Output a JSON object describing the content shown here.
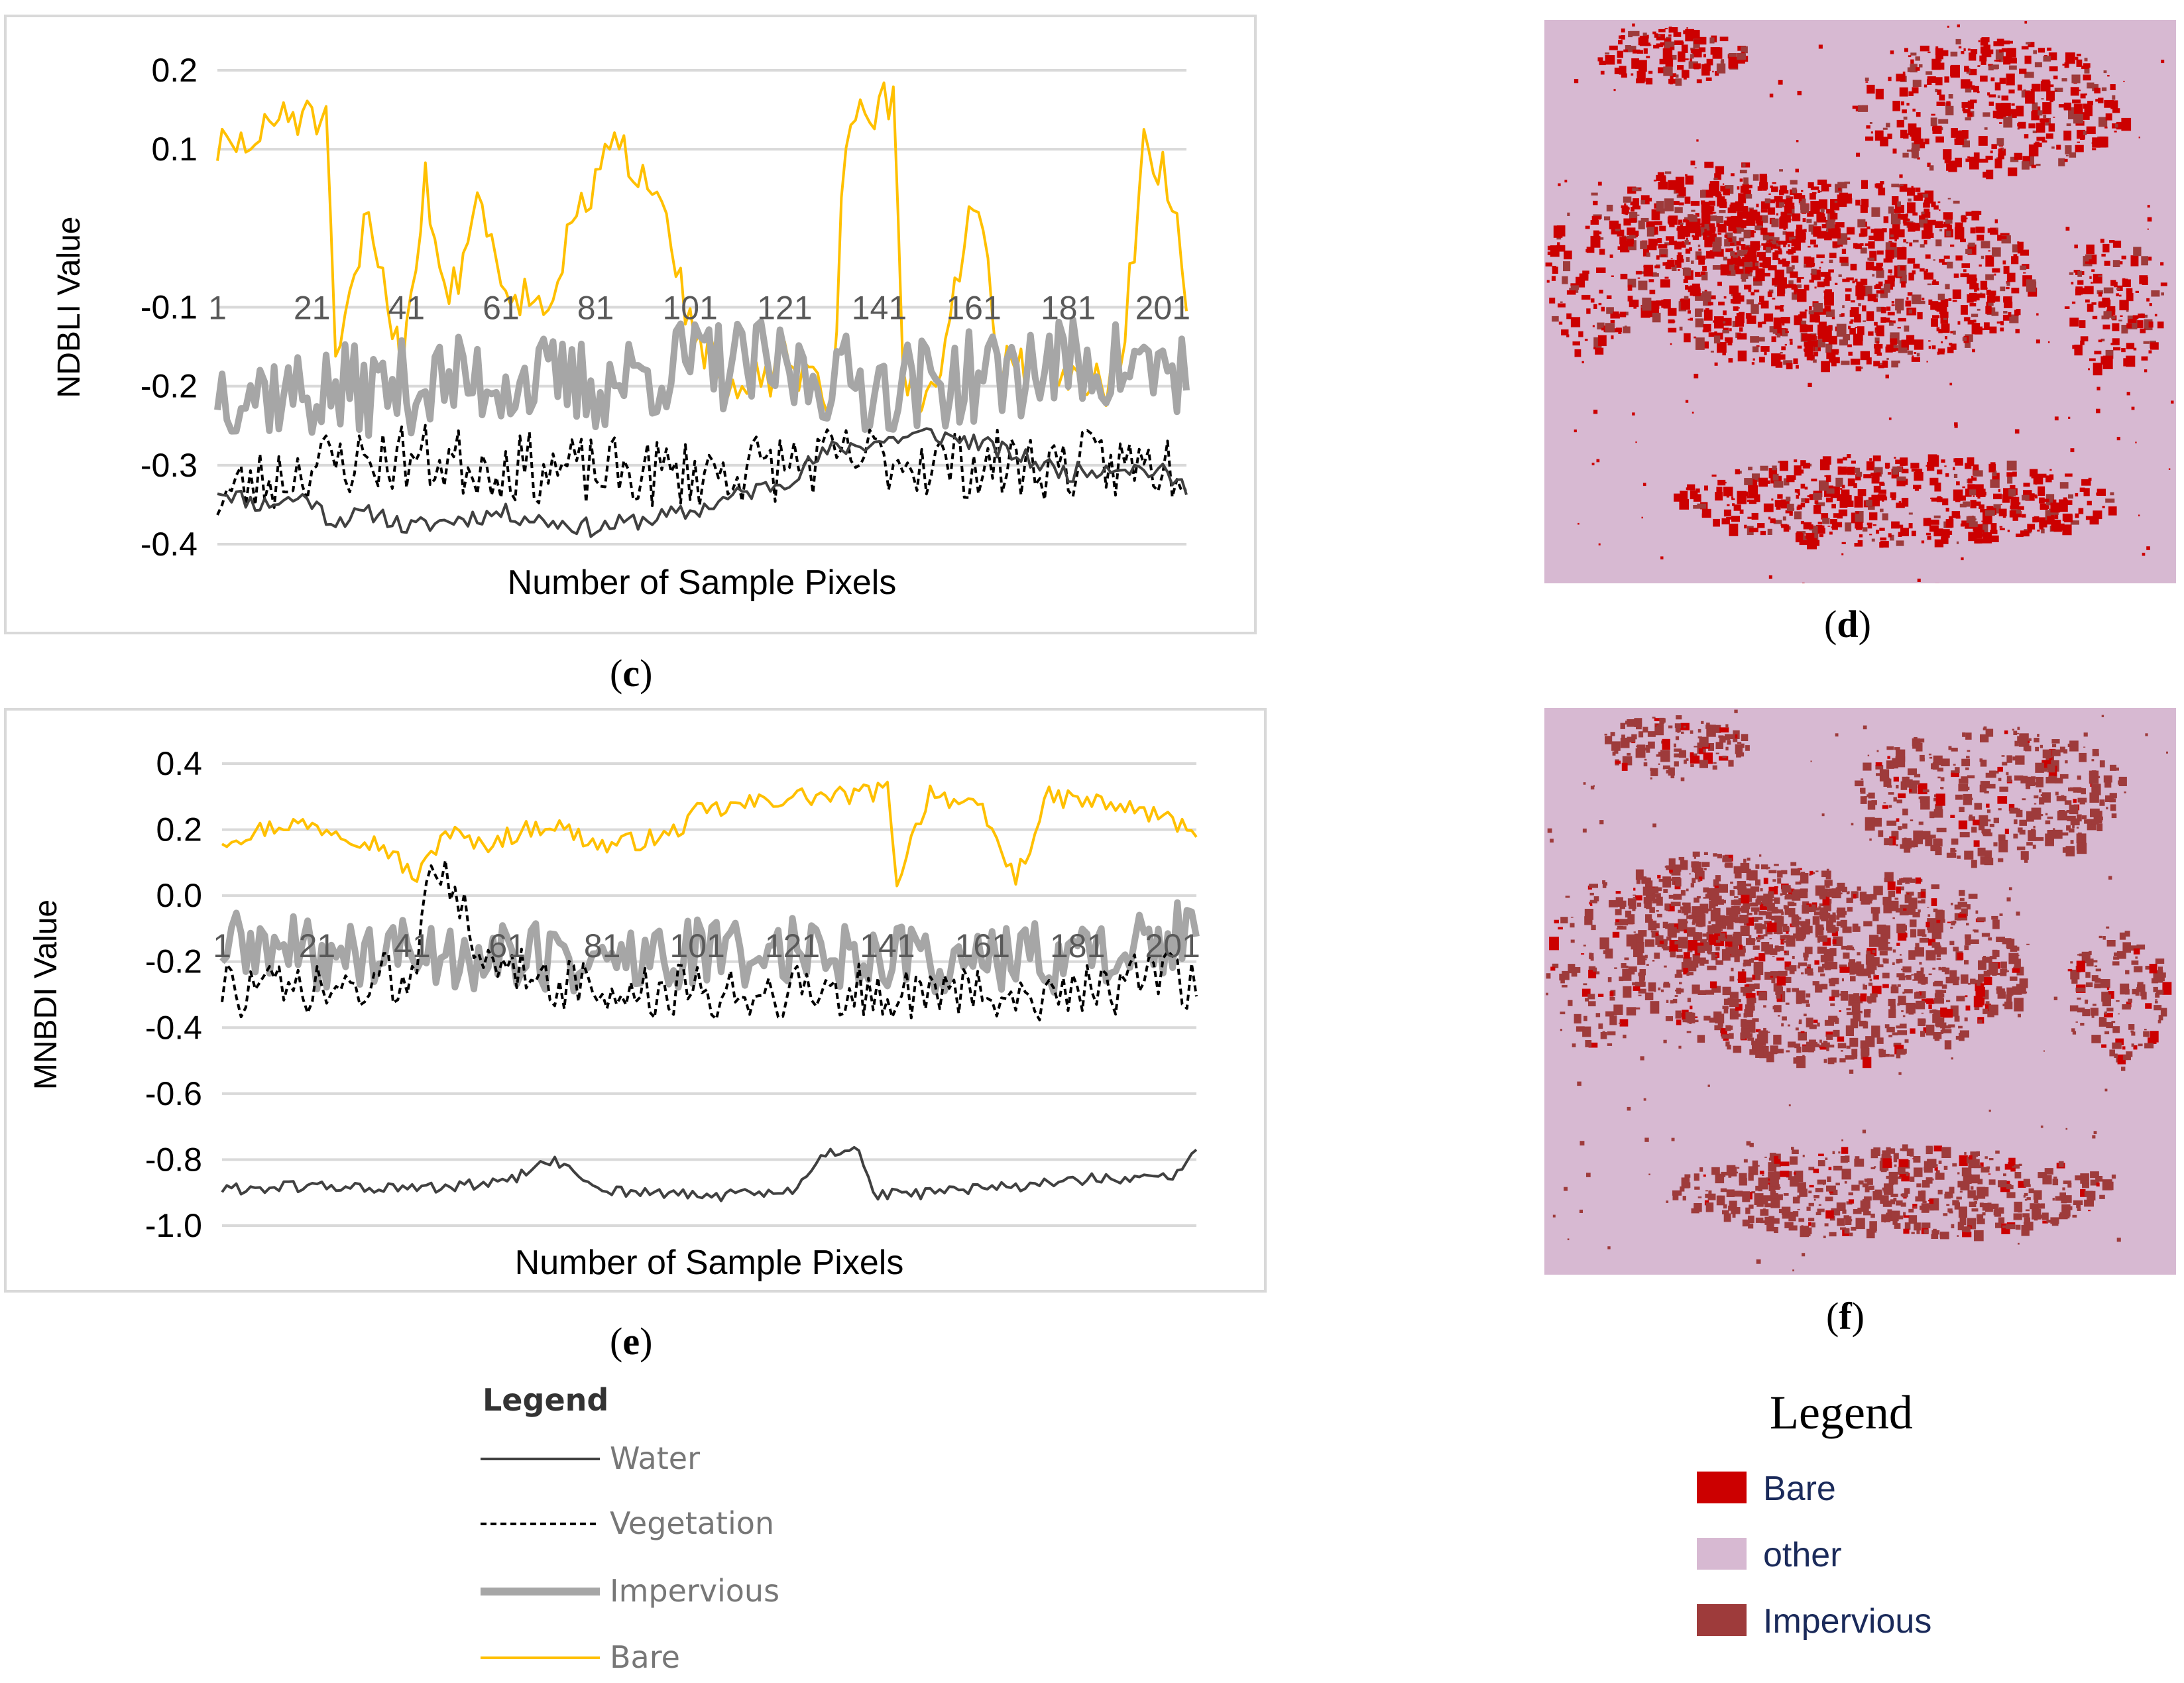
{
  "colors": {
    "water": "#404040",
    "vegetation": "#000000",
    "impervious": "#a6a6a6",
    "bare": "#ffc000",
    "map_bare": "#cc0000",
    "map_other": "#d7b9d2",
    "map_impervious": "#9e3b3b",
    "grid": "#d9d9d9",
    "tick_text": "#595959"
  },
  "chart_data": [
    {
      "id": "c",
      "type": "line",
      "panel_label": "c",
      "ylabel": "NDBLI Value",
      "xlabel": "Number of Sample Pixels",
      "y_tick_labels": [
        "0.2",
        "0.1",
        "-0.1",
        "-0.2",
        "-0.3",
        "-0.4"
      ],
      "y_tick_values": [
        0.2,
        0.1,
        -0.1,
        -0.2,
        -0.3,
        -0.4
      ],
      "ylim": [
        -0.4,
        0.2
      ],
      "x_tick_labels": [
        "1",
        "21",
        "41",
        "61",
        "81",
        "101",
        "121",
        "141",
        "161",
        "181",
        "201"
      ],
      "x_count": 206,
      "x_axis_at": -0.1,
      "series": [
        {
          "name": "Water",
          "anchors": [
            [
              1,
              -0.33
            ],
            [
              10,
              -0.35
            ],
            [
              20,
              -0.34
            ],
            [
              25,
              -0.37
            ],
            [
              35,
              -0.36
            ],
            [
              41,
              -0.38
            ],
            [
              50,
              -0.37
            ],
            [
              61,
              -0.36
            ],
            [
              70,
              -0.37
            ],
            [
              81,
              -0.38
            ],
            [
              90,
              -0.37
            ],
            [
              101,
              -0.36
            ],
            [
              110,
              -0.34
            ],
            [
              121,
              -0.32
            ],
            [
              131,
              -0.28
            ],
            [
              141,
              -0.27
            ],
            [
              151,
              -0.26
            ],
            [
              161,
              -0.27
            ],
            [
              171,
              -0.29
            ],
            [
              181,
              -0.31
            ],
            [
              191,
              -0.3
            ],
            [
              201,
              -0.31
            ],
            [
              206,
              -0.33
            ]
          ],
          "noise": 0.012,
          "seed": 11
        },
        {
          "name": "Vegetation",
          "anchors": [
            [
              1,
              -0.34
            ],
            [
              21,
              -0.3
            ],
            [
              41,
              -0.29
            ],
            [
              61,
              -0.3
            ],
            [
              81,
              -0.31
            ],
            [
              101,
              -0.31
            ],
            [
              121,
              -0.3
            ],
            [
              141,
              -0.29
            ],
            [
              161,
              -0.3
            ],
            [
              181,
              -0.3
            ],
            [
              206,
              -0.3
            ]
          ],
          "noise": 0.045,
          "seed": 23
        },
        {
          "name": "Impervious",
          "anchors": [
            [
              1,
              -0.2
            ],
            [
              21,
              -0.21
            ],
            [
              41,
              -0.2
            ],
            [
              61,
              -0.19
            ],
            [
              81,
              -0.2
            ],
            [
              101,
              -0.17
            ],
            [
              121,
              -0.18
            ],
            [
              141,
              -0.2
            ],
            [
              161,
              -0.19
            ],
            [
              181,
              -0.17
            ],
            [
              206,
              -0.18
            ]
          ],
          "noise": 0.06,
          "seed": 37
        },
        {
          "name": "Bare",
          "anchors": [
            [
              1,
              0.1
            ],
            [
              10,
              0.11
            ],
            [
              15,
              0.15
            ],
            [
              24,
              0.13
            ],
            [
              26,
              -0.18
            ],
            [
              33,
              0.02
            ],
            [
              40,
              -0.17
            ],
            [
              45,
              0.06
            ],
            [
              50,
              -0.1
            ],
            [
              56,
              0.04
            ],
            [
              62,
              -0.07
            ],
            [
              70,
              -0.1
            ],
            [
              78,
              0.02
            ],
            [
              84,
              0.1
            ],
            [
              95,
              0.06
            ],
            [
              100,
              -0.1
            ],
            [
              110,
              -0.22
            ],
            [
              121,
              -0.17
            ],
            [
              131,
              -0.22
            ],
            [
              134,
              0.13
            ],
            [
              144,
              0.17
            ],
            [
              146,
              -0.2
            ],
            [
              152,
              -0.22
            ],
            [
              158,
              -0.05
            ],
            [
              162,
              0.05
            ],
            [
              166,
              -0.17
            ],
            [
              176,
              -0.19
            ],
            [
              186,
              -0.2
            ],
            [
              192,
              -0.19
            ],
            [
              197,
              0.1
            ],
            [
              203,
              0.05
            ],
            [
              206,
              -0.1
            ]
          ],
          "noise": 0.03,
          "seed": 51
        }
      ]
    },
    {
      "id": "e",
      "type": "line",
      "panel_label": "e",
      "ylabel": "MNBDI Value",
      "xlabel": "Number of Sample Pixels",
      "y_tick_labels": [
        "0.4",
        "0.2",
        "0.0",
        "-0.2",
        "-0.4",
        "-0.6",
        "-0.8",
        "-1.0"
      ],
      "y_tick_values": [
        0.4,
        0.2,
        0.0,
        -0.2,
        -0.4,
        -0.6,
        -0.8,
        -1.0
      ],
      "ylim": [
        -1.0,
        0.4
      ],
      "x_tick_labels": [
        "1",
        "21",
        "41",
        "61",
        "81",
        "101",
        "121",
        "141",
        "161",
        "181",
        "201"
      ],
      "x_count": 206,
      "x_axis_at": -0.15,
      "series": [
        {
          "name": "Water",
          "anchors": [
            [
              1,
              -0.89
            ],
            [
              20,
              -0.88
            ],
            [
              41,
              -0.89
            ],
            [
              61,
              -0.87
            ],
            [
              70,
              -0.8
            ],
            [
              81,
              -0.89
            ],
            [
              101,
              -0.91
            ],
            [
              121,
              -0.9
            ],
            [
              128,
              -0.78
            ],
            [
              135,
              -0.76
            ],
            [
              138,
              -0.91
            ],
            [
              161,
              -0.89
            ],
            [
              181,
              -0.86
            ],
            [
              201,
              -0.86
            ],
            [
              206,
              -0.76
            ]
          ],
          "noise": 0.018,
          "seed": 61
        },
        {
          "name": "Vegetation",
          "anchors": [
            [
              1,
              -0.28
            ],
            [
              21,
              -0.3
            ],
            [
              41,
              -0.25
            ],
            [
              45,
              0.15
            ],
            [
              50,
              0.05
            ],
            [
              55,
              -0.25
            ],
            [
              61,
              -0.2
            ],
            [
              81,
              -0.3
            ],
            [
              101,
              -0.3
            ],
            [
              121,
              -0.28
            ],
            [
              141,
              -0.3
            ],
            [
              161,
              -0.3
            ],
            [
              181,
              -0.28
            ],
            [
              206,
              -0.25
            ]
          ],
          "noise": 0.09,
          "seed": 73
        },
        {
          "name": "Impervious",
          "anchors": [
            [
              1,
              -0.15
            ],
            [
              21,
              -0.18
            ],
            [
              41,
              -0.17
            ],
            [
              61,
              -0.18
            ],
            [
              81,
              -0.2
            ],
            [
              101,
              -0.18
            ],
            [
              121,
              -0.16
            ],
            [
              141,
              -0.18
            ],
            [
              161,
              -0.2
            ],
            [
              181,
              -0.18
            ],
            [
              206,
              -0.12
            ]
          ],
          "noise": 0.11,
          "seed": 89
        },
        {
          "name": "Bare",
          "anchors": [
            [
              1,
              0.17
            ],
            [
              15,
              0.22
            ],
            [
              25,
              0.2
            ],
            [
              35,
              0.15
            ],
            [
              42,
              0.05
            ],
            [
              48,
              0.2
            ],
            [
              55,
              0.15
            ],
            [
              61,
              0.18
            ],
            [
              70,
              0.22
            ],
            [
              81,
              0.15
            ],
            [
              95,
              0.18
            ],
            [
              101,
              0.25
            ],
            [
              121,
              0.3
            ],
            [
              131,
              0.3
            ],
            [
              141,
              0.32
            ],
            [
              143,
              0.05
            ],
            [
              150,
              0.32
            ],
            [
              161,
              0.25
            ],
            [
              168,
              0.05
            ],
            [
              175,
              0.3
            ],
            [
              186,
              0.28
            ],
            [
              196,
              0.25
            ],
            [
              206,
              0.2
            ]
          ],
          "noise": 0.03,
          "seed": 97
        }
      ]
    }
  ],
  "panels": {
    "c": "c",
    "d": "d",
    "e": "e",
    "f": "f"
  },
  "chart_legend": {
    "title": "Legend",
    "items": [
      "Water",
      "Vegetation",
      "Impervious",
      "Bare"
    ]
  },
  "map_legend": {
    "title": "Legend",
    "items": [
      "Bare",
      "other",
      "Impervious"
    ]
  }
}
